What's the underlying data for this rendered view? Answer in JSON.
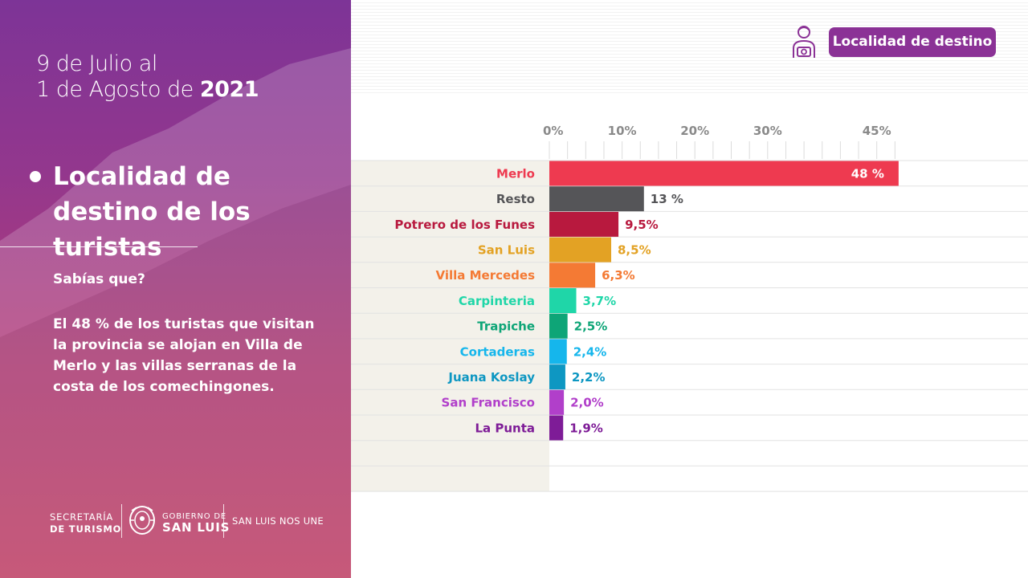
{
  "header": {
    "date_line1": "9 de Julio al",
    "date_line2": "1 de Agosto de ",
    "date_year": "2021",
    "badge": "Localidad de destino"
  },
  "sidebar": {
    "section_title": "Localidad de destino de los turistas",
    "did_you_know": "Sabías que?",
    "insight": "El 48 % de los turistas que visitan la provincia se alojan en Villa de Merlo y las  villas serranas de la costa de los comechingones."
  },
  "footer": {
    "secretaria_line1": "SECRETARÍA",
    "secretaria_line2": "DE TURISMO",
    "gobierno_line1": "GOBIERNO DE",
    "gobierno_line2": "SAN LUIS",
    "slogan": "SAN LUIS NOS UNE"
  },
  "colors": {
    "panel_gradient_top": "#7d3497",
    "panel_gradient_bottom": "#c9436a",
    "badge": "#8b3296"
  },
  "icons": [
    "tourist-camera-icon",
    "bullet-icon",
    "san-luis-seal-icon"
  ],
  "chart_data": {
    "type": "bar",
    "orientation": "horizontal",
    "categories": [
      "Merlo",
      "Resto",
      "Potrero de los Funes",
      "San Luis",
      "Villa Mercedes",
      "Carpinteria",
      "Trapiche",
      "Cortaderas",
      "Juana Koslay",
      "San Francisco",
      "La Punta"
    ],
    "values": [
      48,
      13,
      9.5,
      8.5,
      6.3,
      3.7,
      2.5,
      2.4,
      2.2,
      2.0,
      1.9
    ],
    "value_labels": [
      "48 %",
      "13 %",
      "9,5%",
      "8,5%",
      "6,3%",
      "3,7%",
      "2,5%",
      "2,4%",
      "2,2%",
      "2,0%",
      "1,9%"
    ],
    "colors": [
      "#ee3a50",
      "#555558",
      "#b8193e",
      "#e3a224",
      "#f47a34",
      "#1fd6a8",
      "#0ea577",
      "#15b6ec",
      "#0e97c2",
      "#b13fca",
      "#7e1c97"
    ],
    "x_ticks": [
      {
        "label": "0%",
        "value": 0
      },
      {
        "label": "10%",
        "value": 10
      },
      {
        "label": "20%",
        "value": 20
      },
      {
        "label": "30%",
        "value": 30
      },
      {
        "label": "45%",
        "value": 45
      }
    ],
    "xlim": [
      0,
      48
    ],
    "grid": false,
    "legend": "none"
  }
}
